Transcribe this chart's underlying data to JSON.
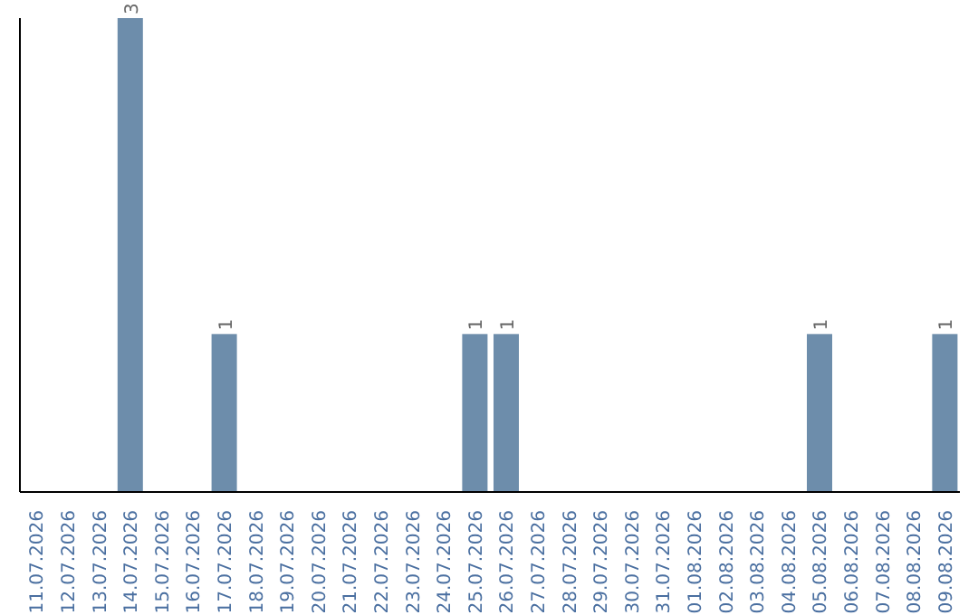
{
  "chart_data": {
    "type": "bar",
    "categories": [
      "11.07.2026",
      "12.07.2026",
      "13.07.2026",
      "14.07.2026",
      "15.07.2026",
      "16.07.2026",
      "17.07.2026",
      "18.07.2026",
      "19.07.2026",
      "20.07.2026",
      "21.07.2026",
      "22.07.2026",
      "23.07.2026",
      "24.07.2026",
      "25.07.2026",
      "26.07.2026",
      "27.07.2026",
      "28.07.2026",
      "29.07.2026",
      "30.07.2026",
      "31.07.2026",
      "01.08.2026",
      "02.08.2026",
      "03.08.2026",
      "04.08.2026",
      "05.08.2026",
      "06.08.2026",
      "07.08.2026",
      "08.08.2026",
      "09.08.2026"
    ],
    "values": [
      0,
      0,
      0,
      3,
      0,
      0,
      1,
      0,
      0,
      0,
      0,
      0,
      0,
      0,
      1,
      1,
      0,
      0,
      0,
      0,
      0,
      0,
      0,
      0,
      0,
      1,
      0,
      0,
      0,
      1
    ],
    "value_labels": [
      null,
      null,
      null,
      "3",
      null,
      null,
      "1",
      null,
      null,
      null,
      null,
      null,
      null,
      null,
      "1",
      "1",
      null,
      null,
      null,
      null,
      null,
      null,
      null,
      null,
      null,
      "1",
      null,
      null,
      null,
      "1"
    ],
    "color": "#6d8dab",
    "tick_labels": "x",
    "grid": false,
    "legend": false
  }
}
